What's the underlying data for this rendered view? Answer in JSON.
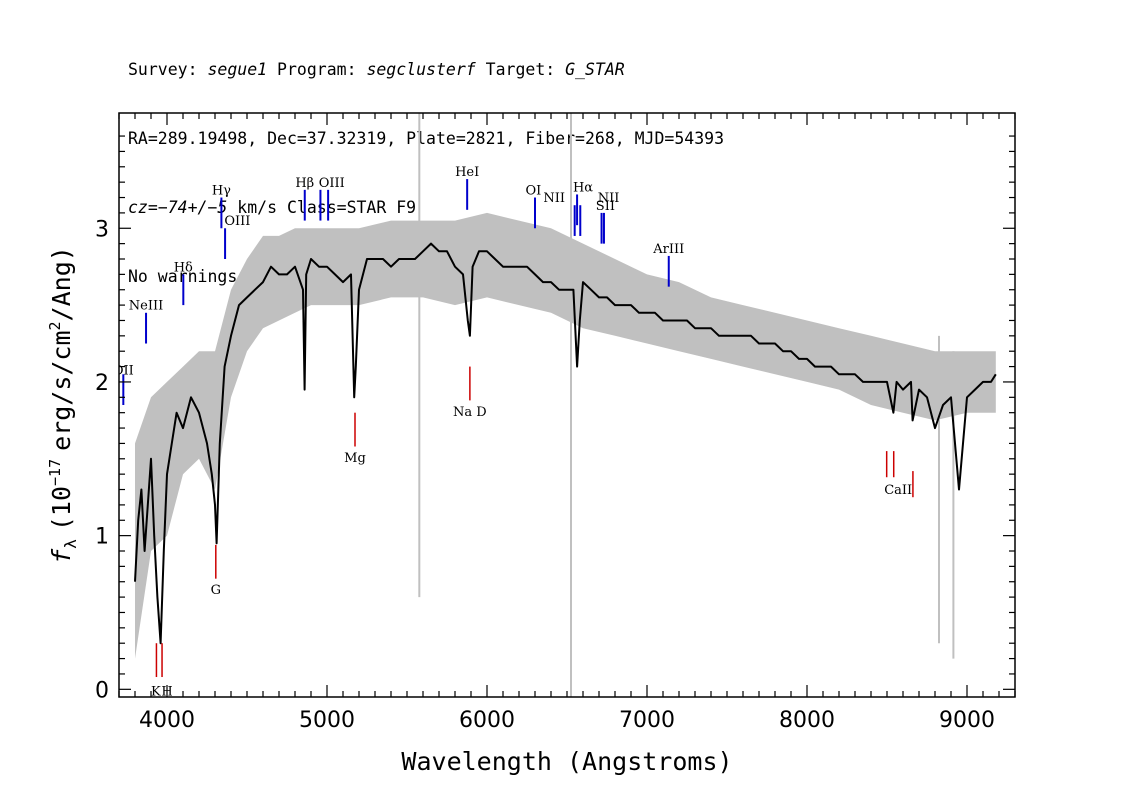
{
  "header": {
    "survey_label": "Survey: ",
    "survey": "segue1",
    "program_label": " Program: ",
    "program": "segclusterf",
    "target_label": " Target: ",
    "target": "G_STAR",
    "line2": "RA=289.19498, Dec=37.32319, Plate=2821, Fiber=268, MJD=54393",
    "cz_label": "cz=",
    "cz_value": "−74+/−5",
    "cz_rest": " km/s Class=STAR F9",
    "line4": "No warnings."
  },
  "chart_data": {
    "type": "line",
    "xlabel": "Wavelength (Angstroms)",
    "ylabel_prefix": "f",
    "ylabel_sub": "λ",
    "ylabel_main": "(10",
    "ylabel_exp": "−17",
    "ylabel_units": "erg/s/cm",
    "ylabel_exp2": "2",
    "ylabel_end": "/Ang)",
    "xlim": [
      3700,
      9300
    ],
    "ylim": [
      -0.05,
      3.75
    ],
    "x_ticks": [
      4000,
      5000,
      6000,
      7000,
      8000,
      9000
    ],
    "y_ticks": [
      0,
      1,
      2,
      3
    ],
    "x_tick_labels": [
      "4000",
      "5000",
      "6000",
      "7000",
      "8000",
      "9000"
    ],
    "y_tick_labels": [
      "0",
      "1",
      "2",
      "3"
    ],
    "spectrum_color": "#000000",
    "error_color": "#c0c0c0",
    "spectrum": {
      "x": [
        3800,
        3820,
        3840,
        3860,
        3880,
        3900,
        3920,
        3940,
        3960,
        3980,
        4000,
        4030,
        4060,
        4100,
        4150,
        4200,
        4250,
        4280,
        4300,
        4310,
        4330,
        4360,
        4400,
        4450,
        4500,
        4550,
        4600,
        4650,
        4700,
        4750,
        4800,
        4850,
        4860,
        4870,
        4900,
        4950,
        5000,
        5050,
        5100,
        5150,
        5170,
        5180,
        5200,
        5250,
        5300,
        5350,
        5400,
        5450,
        5500,
        5550,
        5600,
        5650,
        5700,
        5750,
        5800,
        5850,
        5880,
        5893,
        5910,
        5950,
        6000,
        6050,
        6100,
        6150,
        6200,
        6250,
        6300,
        6350,
        6400,
        6450,
        6500,
        6540,
        6563,
        6580,
        6600,
        6650,
        6700,
        6750,
        6800,
        6850,
        6900,
        6950,
        7000,
        7050,
        7100,
        7150,
        7200,
        7250,
        7300,
        7350,
        7400,
        7450,
        7500,
        7550,
        7600,
        7650,
        7700,
        7750,
        7800,
        7850,
        7900,
        7950,
        8000,
        8050,
        8100,
        8150,
        8200,
        8250,
        8300,
        8350,
        8400,
        8450,
        8500,
        8540,
        8560,
        8600,
        8650,
        8660,
        8700,
        8750,
        8800,
        8850,
        8900,
        8950,
        9000,
        9050,
        9100,
        9150,
        9180
      ],
      "y": [
        0.7,
        1.1,
        1.3,
        0.9,
        1.2,
        1.5,
        1.0,
        0.6,
        0.3,
        0.9,
        1.4,
        1.6,
        1.8,
        1.7,
        1.9,
        1.8,
        1.6,
        1.4,
        1.2,
        0.95,
        1.6,
        2.1,
        2.3,
        2.5,
        2.55,
        2.6,
        2.65,
        2.75,
        2.7,
        2.7,
        2.75,
        2.6,
        1.95,
        2.7,
        2.8,
        2.75,
        2.75,
        2.7,
        2.65,
        2.7,
        1.9,
        2.1,
        2.6,
        2.8,
        2.8,
        2.8,
        2.75,
        2.8,
        2.8,
        2.8,
        2.85,
        2.9,
        2.85,
        2.85,
        2.75,
        2.7,
        2.4,
        2.3,
        2.75,
        2.85,
        2.85,
        2.8,
        2.75,
        2.75,
        2.75,
        2.75,
        2.7,
        2.65,
        2.65,
        2.6,
        2.6,
        2.6,
        2.1,
        2.4,
        2.65,
        2.6,
        2.55,
        2.55,
        2.5,
        2.5,
        2.5,
        2.45,
        2.45,
        2.45,
        2.4,
        2.4,
        2.4,
        2.4,
        2.35,
        2.35,
        2.35,
        2.3,
        2.3,
        2.3,
        2.3,
        2.3,
        2.25,
        2.25,
        2.25,
        2.2,
        2.2,
        2.15,
        2.15,
        2.1,
        2.1,
        2.1,
        2.05,
        2.05,
        2.05,
        2.0,
        2.0,
        2.0,
        2.0,
        1.8,
        2.0,
        1.95,
        2.0,
        1.75,
        1.95,
        1.9,
        1.7,
        1.85,
        1.9,
        1.3,
        1.9,
        1.95,
        2.0,
        2.0,
        2.05
      ]
    },
    "error_band": {
      "x": [
        3800,
        3900,
        4000,
        4100,
        4200,
        4300,
        4400,
        4500,
        4600,
        4700,
        4800,
        4900,
        5000,
        5200,
        5400,
        5600,
        5800,
        6000,
        6200,
        6400,
        6600,
        6800,
        7000,
        7200,
        7400,
        7600,
        7800,
        8000,
        8200,
        8400,
        8600,
        8800,
        9000,
        9180
      ],
      "upper": [
        1.6,
        1.9,
        2.0,
        2.1,
        2.2,
        2.2,
        2.6,
        2.8,
        2.95,
        2.95,
        3.0,
        3.0,
        3.0,
        3.0,
        3.05,
        3.05,
        3.05,
        3.1,
        3.05,
        3.0,
        2.9,
        2.8,
        2.7,
        2.65,
        2.55,
        2.5,
        2.45,
        2.4,
        2.35,
        2.3,
        2.25,
        2.2,
        2.2,
        2.2
      ],
      "lower": [
        0.2,
        0.9,
        1.0,
        1.4,
        1.5,
        1.3,
        1.9,
        2.2,
        2.35,
        2.4,
        2.45,
        2.5,
        2.5,
        2.5,
        2.55,
        2.55,
        2.5,
        2.55,
        2.5,
        2.45,
        2.35,
        2.3,
        2.25,
        2.2,
        2.15,
        2.1,
        2.05,
        2.0,
        1.95,
        1.85,
        1.8,
        1.75,
        1.8,
        1.8
      ]
    },
    "sky_spikes": [
      {
        "x": 5577,
        "low": 0.6,
        "high": 3.75
      },
      {
        "x": 6525,
        "low": -0.05,
        "high": 3.75
      },
      {
        "x": 8825,
        "low": 0.3,
        "high": 2.3
      },
      {
        "x": 8915,
        "low": 0.2,
        "high": 2.2
      }
    ],
    "emission_lines": [
      {
        "label": "OII",
        "x": 3727,
        "y_low": 1.85,
        "y_high": 2.05
      },
      {
        "label": "NeIII",
        "x": 3869,
        "y_low": 2.25,
        "y_high": 2.45
      },
      {
        "label": "Hδ",
        "x": 4102,
        "y_low": 2.5,
        "y_high": 2.7
      },
      {
        "label": "Hγ",
        "x": 4340,
        "y_low": 3.0,
        "y_high": 3.2
      },
      {
        "label": "OIII",
        "x": 4363,
        "y_low": 2.8,
        "y_high": 3.0
      },
      {
        "label": "Hβ",
        "x": 4861,
        "y_low": 3.05,
        "y_high": 3.25
      },
      {
        "label": "OIII",
        "x": 4959,
        "y_low": 3.05,
        "y_high": 3.25
      },
      {
        "label": "OIII_b",
        "x": 5007,
        "y_low": 3.05,
        "y_high": 3.25
      },
      {
        "label": "HeI",
        "x": 5876,
        "y_low": 3.12,
        "y_high": 3.32
      },
      {
        "label": "OI",
        "x": 6300,
        "y_low": 3.0,
        "y_high": 3.2
      },
      {
        "label": "NII",
        "x": 6548,
        "y_low": 2.95,
        "y_high": 3.15
      },
      {
        "label": "Hα",
        "x": 6563,
        "y_low": 3.02,
        "y_high": 3.22
      },
      {
        "label": "NII_b",
        "x": 6583,
        "y_low": 2.95,
        "y_high": 3.15
      },
      {
        "label": "SII",
        "x": 6716,
        "y_low": 2.9,
        "y_high": 3.1
      },
      {
        "label": "SII_b",
        "x": 6731,
        "y_low": 2.9,
        "y_high": 3.1
      },
      {
        "label": "ArIII",
        "x": 7136,
        "y_low": 2.62,
        "y_high": 2.82
      }
    ],
    "emission_text": [
      {
        "label": "OII",
        "x": 3727,
        "y": 2.05
      },
      {
        "label": "NeIII",
        "x": 3869,
        "y": 2.47
      },
      {
        "label": "Hδ",
        "x": 4102,
        "y": 2.72
      },
      {
        "label": "Hγ",
        "x": 4340,
        "y": 3.22
      },
      {
        "label": "OIII",
        "x": 4440,
        "y": 3.02
      },
      {
        "label": "Hβ",
        "x": 4861,
        "y": 3.27
      },
      {
        "label": "OIII",
        "x": 5030,
        "y": 3.27
      },
      {
        "label": "HeI",
        "x": 5876,
        "y": 3.34
      },
      {
        "label": "OI",
        "x": 6290,
        "y": 3.22
      },
      {
        "label": "NII",
        "x": 6420,
        "y": 3.17
      },
      {
        "label": "Hα",
        "x": 6600,
        "y": 3.24
      },
      {
        "label": "NII",
        "x": 6760,
        "y": 3.17
      },
      {
        "label": "SII",
        "x": 6740,
        "y": 3.12
      },
      {
        "label": "ArIII",
        "x": 7136,
        "y": 2.84
      }
    ],
    "absorption_lines": [
      {
        "x": 3934,
        "y_low": 0.08,
        "y_high": 0.3
      },
      {
        "x": 3969,
        "y_low": 0.08,
        "y_high": 0.3
      },
      {
        "x": 4305,
        "y_low": 0.72,
        "y_high": 0.94
      },
      {
        "x": 5175,
        "y_low": 1.58,
        "y_high": 1.8
      },
      {
        "x": 5893,
        "y_low": 1.88,
        "y_high": 2.1
      },
      {
        "x": 8498,
        "y_low": 1.38,
        "y_high": 1.55
      },
      {
        "x": 8542,
        "y_low": 1.38,
        "y_high": 1.55
      },
      {
        "x": 8662,
        "y_low": 1.25,
        "y_high": 1.42
      }
    ],
    "absorption_text": [
      {
        "label": "K",
        "x": 3930,
        "y": -0.04
      },
      {
        "label": "H",
        "x": 4000,
        "y": -0.04
      },
      {
        "label": "G",
        "x": 4305,
        "y": 0.62
      },
      {
        "label": "Mg",
        "x": 5175,
        "y": 1.48
      },
      {
        "label": "Na D",
        "x": 5893,
        "y": 1.78
      },
      {
        "label": "CaII",
        "x": 8570,
        "y": 1.27
      }
    ],
    "emission_color": "#0000cc",
    "absorption_color": "#cc0000"
  }
}
